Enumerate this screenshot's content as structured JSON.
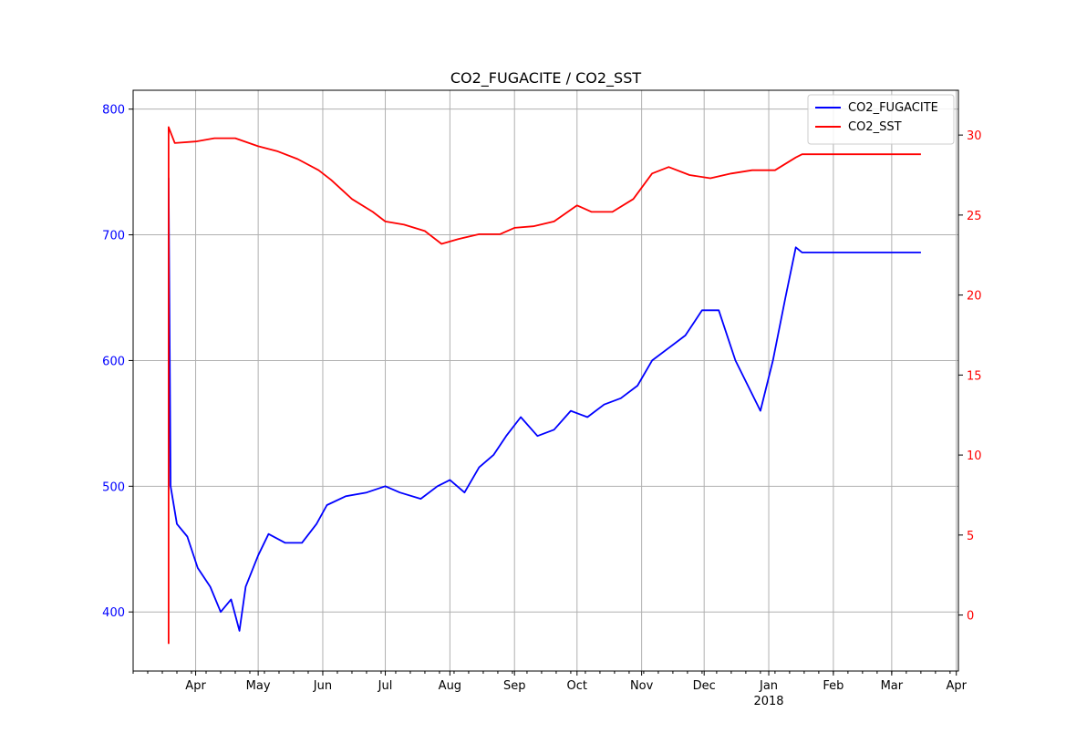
{
  "chart_data": {
    "type": "line",
    "title": "CO2_FUGACITE / CO2_SST",
    "x_axis": {
      "type": "date",
      "ticks": [
        {
          "date": "2017-04-01",
          "label": "Apr"
        },
        {
          "date": "2017-05-01",
          "label": "May"
        },
        {
          "date": "2017-06-01",
          "label": "Jun"
        },
        {
          "date": "2017-07-01",
          "label": "Jul"
        },
        {
          "date": "2017-08-01",
          "label": "Aug"
        },
        {
          "date": "2017-09-01",
          "label": "Sep"
        },
        {
          "date": "2017-10-01",
          "label": "Oct"
        },
        {
          "date": "2017-11-01",
          "label": "Nov"
        },
        {
          "date": "2017-12-01",
          "label": "Dec"
        },
        {
          "date": "2018-01-01",
          "label": "Jan"
        },
        {
          "date": "2018-02-01",
          "label": "Feb"
        },
        {
          "date": "2018-03-01",
          "label": "Mar"
        },
        {
          "date": "2018-04-01",
          "label": "Apr"
        }
      ],
      "year_label": {
        "date": "2018-01-01",
        "text": "2018"
      },
      "range": [
        "2017-03-02",
        "2018-04-02"
      ]
    },
    "y_axis_left": {
      "ticks": [
        400,
        500,
        600,
        700,
        800
      ],
      "range": [
        353,
        815
      ],
      "color": "#0000ff"
    },
    "y_axis_right": {
      "ticks": [
        0,
        5,
        10,
        15,
        20,
        25,
        30
      ],
      "range": [
        -3.5,
        32.8
      ],
      "color": "#ff0000"
    },
    "grid": true,
    "legend": {
      "placement": "top-right"
    },
    "series": [
      {
        "name": "CO2_FUGACITE",
        "axis": "left",
        "color": "#0000ff",
        "points": [
          [
            "2017-03-19",
            500
          ],
          [
            "2017-03-19",
            745
          ],
          [
            "2017-03-20",
            500
          ],
          [
            "2017-03-23",
            470
          ],
          [
            "2017-03-28",
            460
          ],
          [
            "2017-04-02",
            435
          ],
          [
            "2017-04-08",
            420
          ],
          [
            "2017-04-13",
            400
          ],
          [
            "2017-04-18",
            410
          ],
          [
            "2017-04-22",
            385
          ],
          [
            "2017-04-25",
            420
          ],
          [
            "2017-05-01",
            445
          ],
          [
            "2017-05-06",
            462
          ],
          [
            "2017-05-14",
            455
          ],
          [
            "2017-05-22",
            455
          ],
          [
            "2017-05-29",
            470
          ],
          [
            "2017-06-03",
            485
          ],
          [
            "2017-06-12",
            492
          ],
          [
            "2017-06-22",
            495
          ],
          [
            "2017-07-01",
            500
          ],
          [
            "2017-07-08",
            495
          ],
          [
            "2017-07-18",
            490
          ],
          [
            "2017-07-26",
            500
          ],
          [
            "2017-08-01",
            505
          ],
          [
            "2017-08-08",
            495
          ],
          [
            "2017-08-15",
            515
          ],
          [
            "2017-08-22",
            525
          ],
          [
            "2017-08-28",
            540
          ],
          [
            "2017-09-04",
            555
          ],
          [
            "2017-09-12",
            540
          ],
          [
            "2017-09-20",
            545
          ],
          [
            "2017-09-28",
            560
          ],
          [
            "2017-10-06",
            555
          ],
          [
            "2017-10-14",
            565
          ],
          [
            "2017-10-22",
            570
          ],
          [
            "2017-10-30",
            580
          ],
          [
            "2017-11-06",
            600
          ],
          [
            "2017-11-14",
            610
          ],
          [
            "2017-11-22",
            620
          ],
          [
            "2017-11-30",
            640
          ],
          [
            "2017-12-08",
            640
          ],
          [
            "2017-12-16",
            600
          ],
          [
            "2017-12-22",
            580
          ],
          [
            "2017-12-28",
            560
          ],
          [
            "2018-01-03",
            600
          ],
          [
            "2018-01-09",
            650
          ],
          [
            "2018-01-14",
            690
          ],
          [
            "2018-01-17",
            686
          ],
          [
            "2018-03-15",
            686
          ]
        ]
      },
      {
        "name": "CO2_SST",
        "axis": "right",
        "color": "#ff0000",
        "points": [
          [
            "2017-03-19",
            -1.8
          ],
          [
            "2017-03-19",
            30.5
          ],
          [
            "2017-03-22",
            29.5
          ],
          [
            "2017-04-01",
            29.6
          ],
          [
            "2017-04-10",
            29.8
          ],
          [
            "2017-04-20",
            29.8
          ],
          [
            "2017-05-01",
            29.3
          ],
          [
            "2017-05-10",
            29.0
          ],
          [
            "2017-05-20",
            28.5
          ],
          [
            "2017-05-30",
            27.8
          ],
          [
            "2017-06-05",
            27.2
          ],
          [
            "2017-06-15",
            26.0
          ],
          [
            "2017-06-25",
            25.2
          ],
          [
            "2017-07-01",
            24.6
          ],
          [
            "2017-07-10",
            24.4
          ],
          [
            "2017-07-20",
            24.0
          ],
          [
            "2017-07-28",
            23.2
          ],
          [
            "2017-08-05",
            23.5
          ],
          [
            "2017-08-15",
            23.8
          ],
          [
            "2017-08-25",
            23.8
          ],
          [
            "2017-09-01",
            24.2
          ],
          [
            "2017-09-10",
            24.3
          ],
          [
            "2017-09-20",
            24.6
          ],
          [
            "2017-10-01",
            25.6
          ],
          [
            "2017-10-08",
            25.2
          ],
          [
            "2017-10-18",
            25.2
          ],
          [
            "2017-10-28",
            26.0
          ],
          [
            "2017-11-06",
            27.6
          ],
          [
            "2017-11-14",
            28.0
          ],
          [
            "2017-11-24",
            27.5
          ],
          [
            "2017-12-04",
            27.3
          ],
          [
            "2017-12-14",
            27.6
          ],
          [
            "2017-12-24",
            27.8
          ],
          [
            "2018-01-04",
            27.8
          ],
          [
            "2018-01-14",
            28.6
          ],
          [
            "2018-01-17",
            28.8
          ],
          [
            "2018-03-15",
            28.8
          ]
        ]
      }
    ]
  }
}
